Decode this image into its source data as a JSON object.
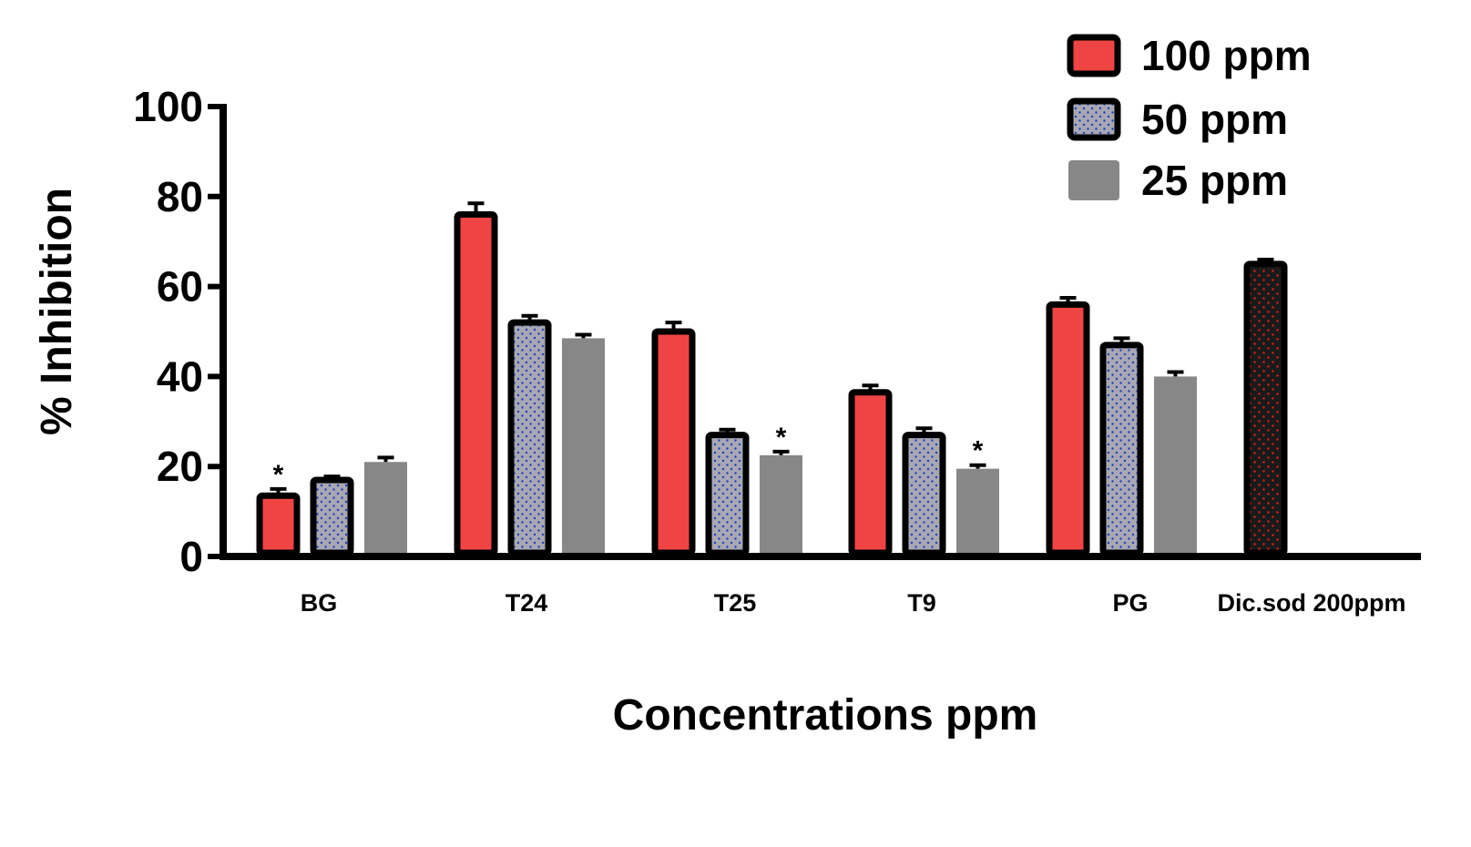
{
  "chart_data": {
    "type": "bar",
    "title": "",
    "xlabel": "Concentrations ppm",
    "ylabel": "% Inhibition",
    "ylim": [
      0,
      100
    ],
    "yticks": [
      0,
      20,
      40,
      60,
      80,
      100
    ],
    "ytick_labels": [
      "0",
      "20",
      "40",
      "60",
      "80",
      "100"
    ],
    "grid": false,
    "legend_position": "top-right",
    "categories": [
      "BG",
      "T24",
      "T25",
      "T9",
      "PG",
      "Dic.sod 200ppm"
    ],
    "series": [
      {
        "name": "100 ppm",
        "color": "#f04444",
        "pattern": "solid",
        "values": [
          13.5,
          76,
          50,
          36.5,
          56,
          null
        ],
        "errors": [
          1.5,
          2.5,
          2,
          1.5,
          1.5,
          null
        ],
        "annotations": [
          "*",
          "",
          "",
          "",
          "",
          ""
        ]
      },
      {
        "name": "50 ppm",
        "color": "#a8a8b4",
        "pattern": "blue-dots",
        "values": [
          17,
          52,
          27,
          27,
          47,
          null
        ],
        "errors": [
          0.8,
          1.5,
          1.2,
          1.5,
          1.5,
          null
        ],
        "annotations": [
          "",
          "",
          "",
          "",
          "",
          ""
        ]
      },
      {
        "name": "25 ppm",
        "color": "#878787",
        "pattern": "solid",
        "values": [
          21,
          48.5,
          22.5,
          19.5,
          40,
          null
        ],
        "errors": [
          1.0,
          0.8,
          0.8,
          0.8,
          1.0,
          null
        ],
        "annotations": [
          "",
          "",
          "*",
          "*",
          "",
          ""
        ]
      }
    ],
    "reference": {
      "category": "Dic.sod 200ppm",
      "value": 65,
      "error": 1.0,
      "color": "#1a1a1a",
      "pattern": "red-dots"
    }
  }
}
